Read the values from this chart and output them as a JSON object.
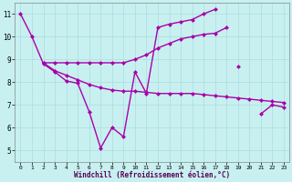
{
  "background_color": "#c8f0f0",
  "line_color": "#aa00aa",
  "marker": "D",
  "markersize": 2.5,
  "linewidth": 1.0,
  "xlabel": "Windchill (Refroidissement éolien,°C)",
  "xlim": [
    -0.5,
    23.5
  ],
  "ylim": [
    4.5,
    11.5
  ],
  "yticks": [
    5,
    6,
    7,
    8,
    9,
    10,
    11
  ],
  "xticks": [
    0,
    1,
    2,
    3,
    4,
    5,
    6,
    7,
    8,
    9,
    10,
    11,
    12,
    13,
    14,
    15,
    16,
    17,
    18,
    19,
    20,
    21,
    22,
    23
  ],
  "grid_color": "#aadddd",
  "series": [
    {
      "x": [
        0,
        1,
        2,
        3,
        4,
        5,
        6,
        7,
        8,
        9,
        10,
        11,
        12,
        13,
        14,
        15,
        16,
        17,
        18,
        19,
        20,
        21,
        22,
        23
      ],
      "y": [
        11.0,
        10.0,
        8.8,
        8.45,
        8.05,
        7.95,
        6.7,
        5.1,
        6.0,
        5.6,
        8.45,
        7.5,
        10.4,
        10.55,
        10.65,
        10.75,
        11.0,
        11.2,
        null,
        8.7,
        null,
        6.6,
        7.0,
        6.9
      ]
    },
    {
      "x": [
        2,
        3,
        4,
        5,
        6,
        7,
        8,
        9,
        10,
        11,
        12,
        13,
        14,
        15,
        16,
        17,
        18
      ],
      "y": [
        8.85,
        8.85,
        8.85,
        8.85,
        8.85,
        8.85,
        8.85,
        8.85,
        9.0,
        9.2,
        9.5,
        9.7,
        9.9,
        10.0,
        10.1,
        10.15,
        10.4
      ]
    },
    {
      "x": [
        2,
        3,
        4,
        5,
        6,
        7,
        8,
        9,
        10,
        11,
        12,
        13,
        14,
        15,
        16,
        17,
        18,
        19,
        20,
        21,
        22,
        23
      ],
      "y": [
        8.85,
        8.5,
        8.3,
        8.1,
        7.9,
        7.75,
        7.65,
        7.6,
        7.6,
        7.55,
        7.5,
        7.5,
        7.5,
        7.5,
        7.45,
        7.4,
        7.35,
        7.3,
        7.25,
        7.2,
        7.15,
        7.1
      ]
    }
  ]
}
